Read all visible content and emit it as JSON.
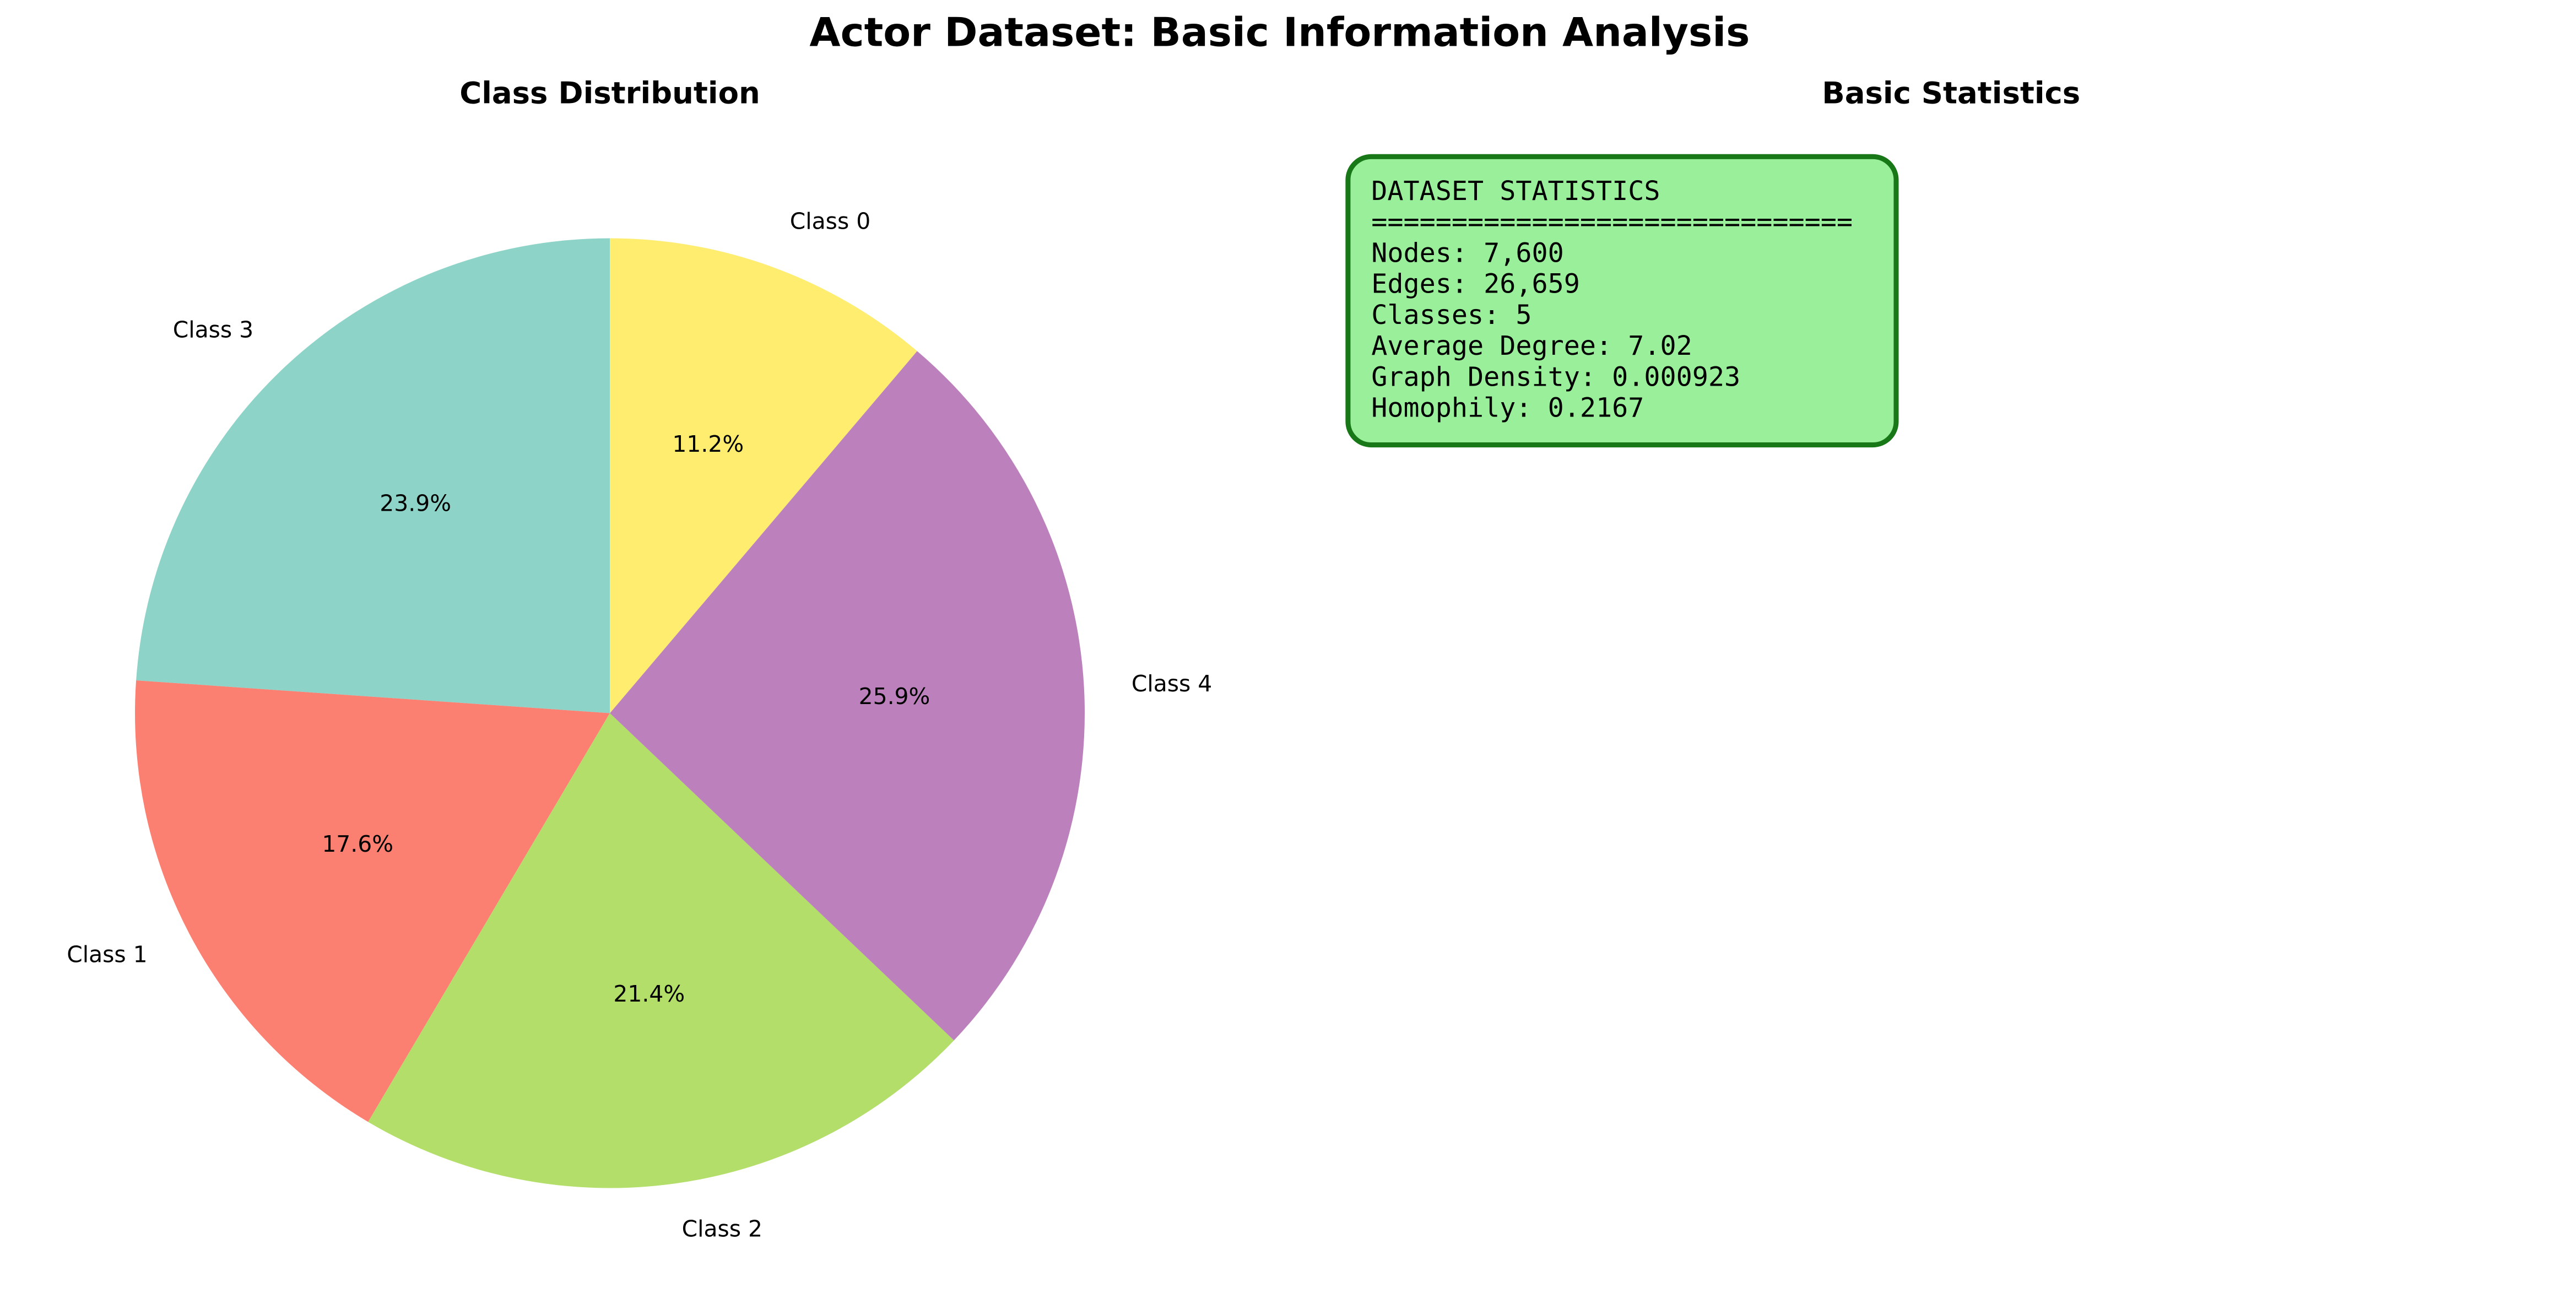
{
  "title": "Actor Dataset: Basic Information Analysis",
  "chart_data": {
    "type": "pie",
    "title": "Class Distribution",
    "categories": [
      "Class 3",
      "Class 1",
      "Class 2",
      "Class 4",
      "Class 0"
    ],
    "values": [
      23.9,
      17.6,
      21.4,
      25.9,
      11.2
    ],
    "value_labels": [
      "23.9%",
      "17.6%",
      "21.4%",
      "25.9%",
      "11.2%"
    ],
    "colors": [
      "#8dd3c7",
      "#fb8072",
      "#b3de69",
      "#bc80bd",
      "#ffed6f"
    ]
  },
  "stats_panel": {
    "title": "Basic Statistics",
    "lines": [
      "DATASET STATISTICS",
      "==============================",
      "Nodes: 7,600",
      "Edges: 26,659",
      "Classes: 5",
      "Average Degree: 7.02",
      "Graph Density: 0.000923",
      "Homophily: 0.2167"
    ]
  }
}
